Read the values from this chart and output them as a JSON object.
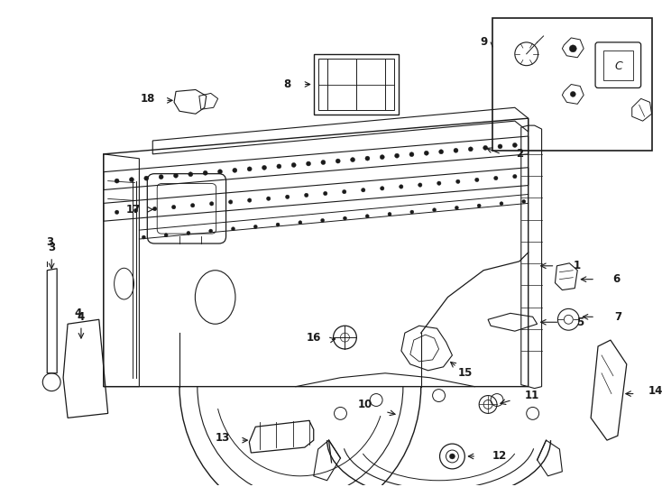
{
  "bg_color": "#ffffff",
  "line_color": "#1a1a1a",
  "lw": 0.9,
  "fig_w": 7.34,
  "fig_h": 5.4,
  "dpi": 100
}
